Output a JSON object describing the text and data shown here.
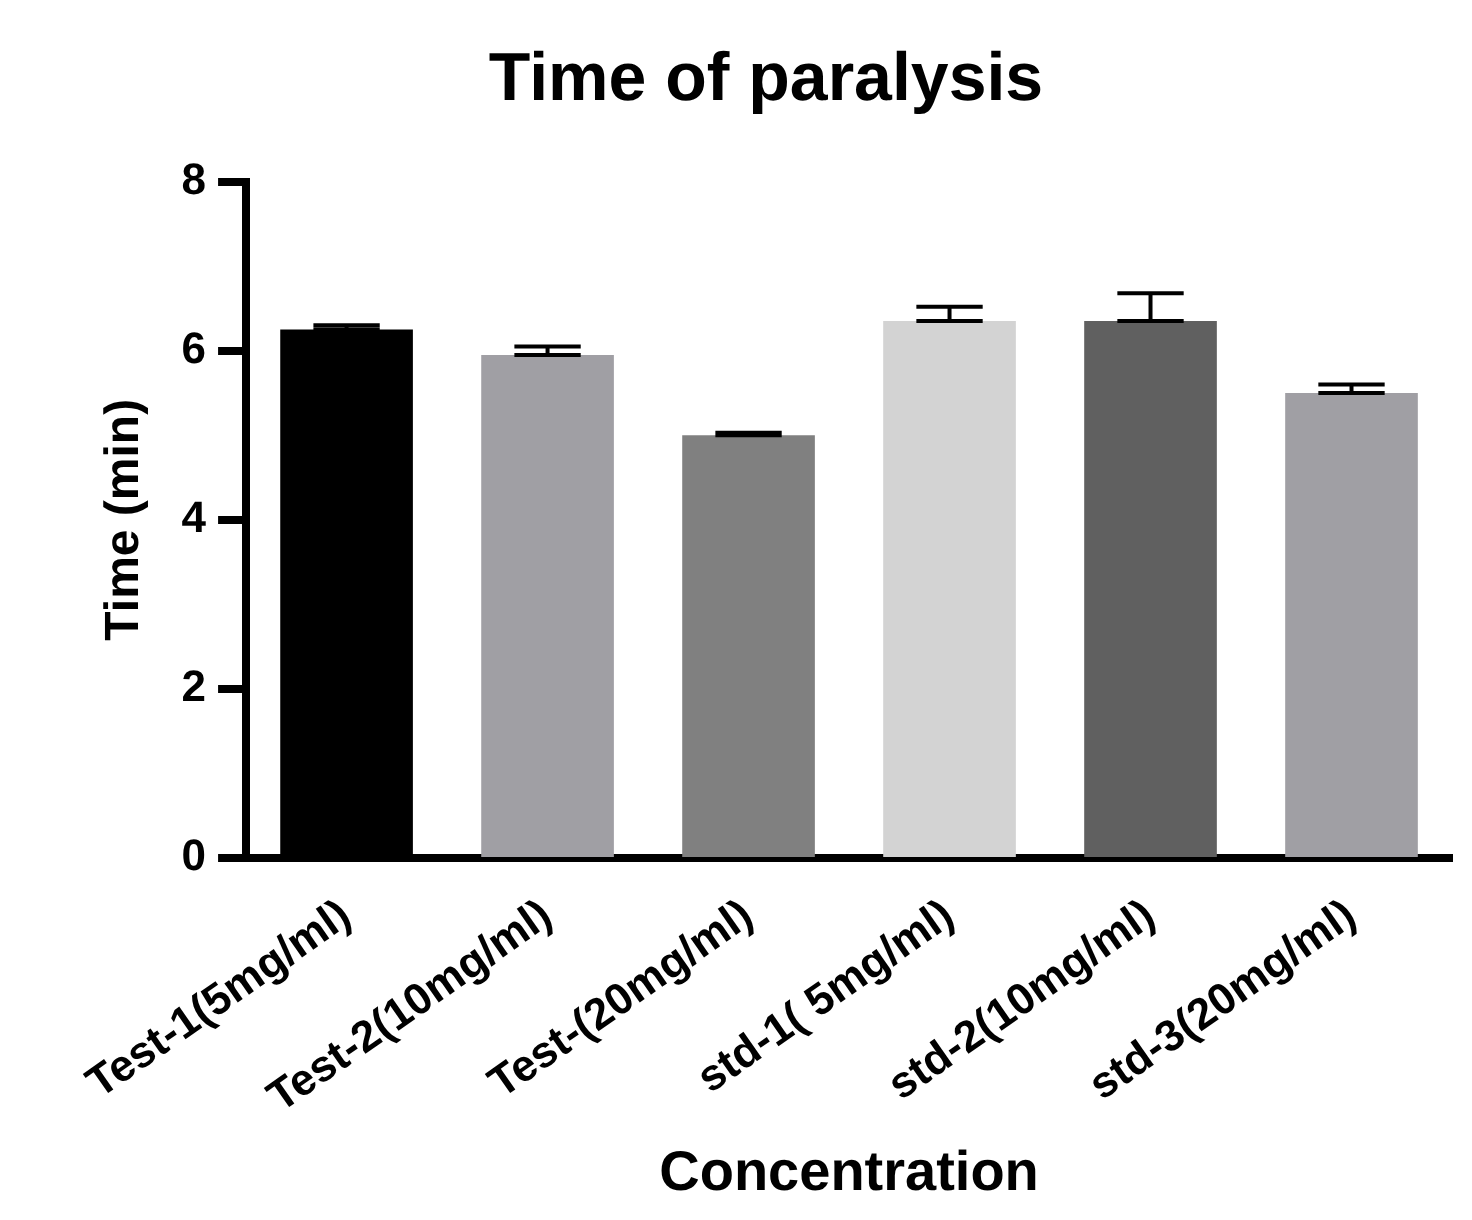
{
  "chart_data": {
    "type": "bar",
    "title": "Time of paralysis",
    "xlabel": "Concentration",
    "ylabel": "Time (min)",
    "categories": [
      "Test-1(5mg/ml)",
      "Test-2(10mg/ml)",
      "Test-(20mg/ml)",
      "std-1( 5mg/ml)",
      "std-2(10mg/ml)",
      "std-3(20mg/ml)"
    ],
    "values": [
      6.25,
      5.95,
      5.0,
      6.35,
      6.35,
      5.5
    ],
    "errors": [
      [
        6.25,
        6.3
      ],
      [
        5.95,
        6.05
      ],
      [
        5.0,
        5.03
      ],
      [
        6.35,
        6.52
      ],
      [
        6.35,
        6.68
      ],
      [
        5.5,
        5.6
      ]
    ],
    "colors": [
      "#000000",
      "#a09fa4",
      "#808080",
      "#d3d3d3",
      "#606060",
      "#a09fa4"
    ],
    "ylim": [
      0,
      8
    ],
    "yticks": [
      0,
      2,
      4,
      6,
      8
    ],
    "grid": false,
    "legend": false
  }
}
